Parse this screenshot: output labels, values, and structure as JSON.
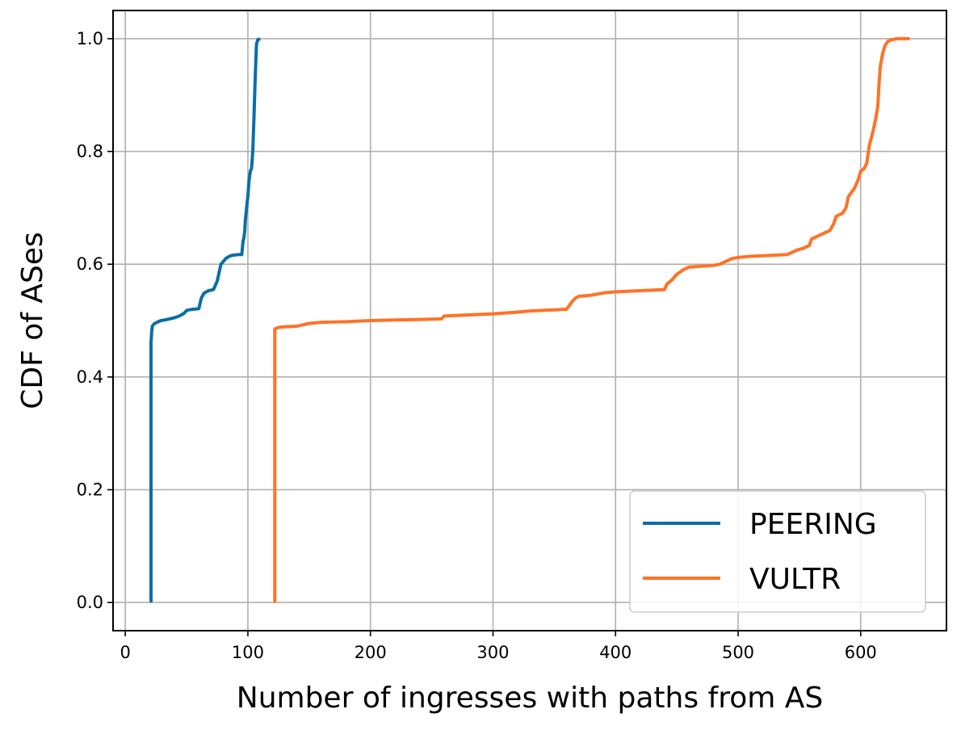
{
  "chart_data": {
    "type": "line",
    "title": "",
    "xlabel": "Number of ingresses with paths from AS",
    "ylabel": "CDF of ASes",
    "xlim": [
      -10,
      670
    ],
    "ylim": [
      -0.05,
      1.05
    ],
    "xticks": [
      0,
      100,
      200,
      300,
      400,
      500,
      600
    ],
    "yticks": [
      0.0,
      0.2,
      0.4,
      0.6,
      0.8,
      1.0
    ],
    "xtick_labels": [
      "0",
      "100",
      "200",
      "300",
      "400",
      "500",
      "600"
    ],
    "ytick_labels": [
      "0.0",
      "0.2",
      "0.4",
      "0.6",
      "0.8",
      "1.0"
    ],
    "grid": true,
    "legend_position": "lower-right",
    "series": [
      {
        "name": "PEERING",
        "color": "#0a6ea8",
        "x": [
          21,
          21,
          21.5,
          22,
          23,
          24,
          26,
          29,
          32,
          36,
          40,
          44,
          48,
          50,
          52,
          55,
          60,
          62,
          64,
          66,
          68,
          72,
          75,
          77,
          78,
          80,
          82,
          84,
          86,
          88,
          92,
          95,
          96,
          97,
          97.5,
          98,
          99,
          100,
          101,
          102,
          103,
          104,
          105,
          106,
          106.5,
          107,
          108,
          110
        ],
        "y": [
          0.0,
          0.46,
          0.48,
          0.49,
          0.493,
          0.495,
          0.497,
          0.5,
          0.501,
          0.503,
          0.505,
          0.508,
          0.513,
          0.518,
          0.519,
          0.52,
          0.521,
          0.54,
          0.548,
          0.551,
          0.553,
          0.555,
          0.57,
          0.59,
          0.6,
          0.605,
          0.61,
          0.613,
          0.615,
          0.616,
          0.617,
          0.617,
          0.64,
          0.65,
          0.66,
          0.68,
          0.7,
          0.72,
          0.75,
          0.765,
          0.77,
          0.8,
          0.86,
          0.93,
          0.96,
          0.99,
          0.998,
          1.0
        ]
      },
      {
        "name": "VULTR",
        "color": "#ff7227",
        "x": [
          122,
          122,
          125,
          130,
          140,
          150,
          160,
          180,
          200,
          220,
          240,
          258,
          260,
          280,
          300,
          320,
          330,
          340,
          360,
          365,
          368,
          370,
          380,
          390,
          400,
          420,
          440,
          442,
          446,
          450,
          455,
          460,
          480,
          485,
          490,
          495,
          500,
          510,
          520,
          530,
          540,
          545,
          548,
          553,
          558,
          560,
          565,
          570,
          575,
          578,
          580,
          585,
          588,
          590,
          595,
          598,
          600,
          603,
          605,
          607,
          610,
          612,
          614,
          615,
          616,
          618,
          620,
          622,
          625,
          630,
          640
        ],
        "y": [
          0.0,
          0.485,
          0.488,
          0.489,
          0.49,
          0.495,
          0.497,
          0.498,
          0.5,
          0.501,
          0.502,
          0.503,
          0.508,
          0.51,
          0.512,
          0.515,
          0.517,
          0.518,
          0.52,
          0.535,
          0.541,
          0.543,
          0.545,
          0.549,
          0.551,
          0.553,
          0.555,
          0.565,
          0.572,
          0.582,
          0.59,
          0.595,
          0.598,
          0.6,
          0.605,
          0.61,
          0.612,
          0.614,
          0.615,
          0.616,
          0.617,
          0.622,
          0.625,
          0.628,
          0.633,
          0.645,
          0.65,
          0.655,
          0.66,
          0.672,
          0.685,
          0.69,
          0.7,
          0.72,
          0.735,
          0.75,
          0.765,
          0.77,
          0.78,
          0.81,
          0.835,
          0.855,
          0.88,
          0.92,
          0.95,
          0.975,
          0.988,
          0.995,
          0.998,
          1.0,
          1.0
        ]
      }
    ]
  }
}
